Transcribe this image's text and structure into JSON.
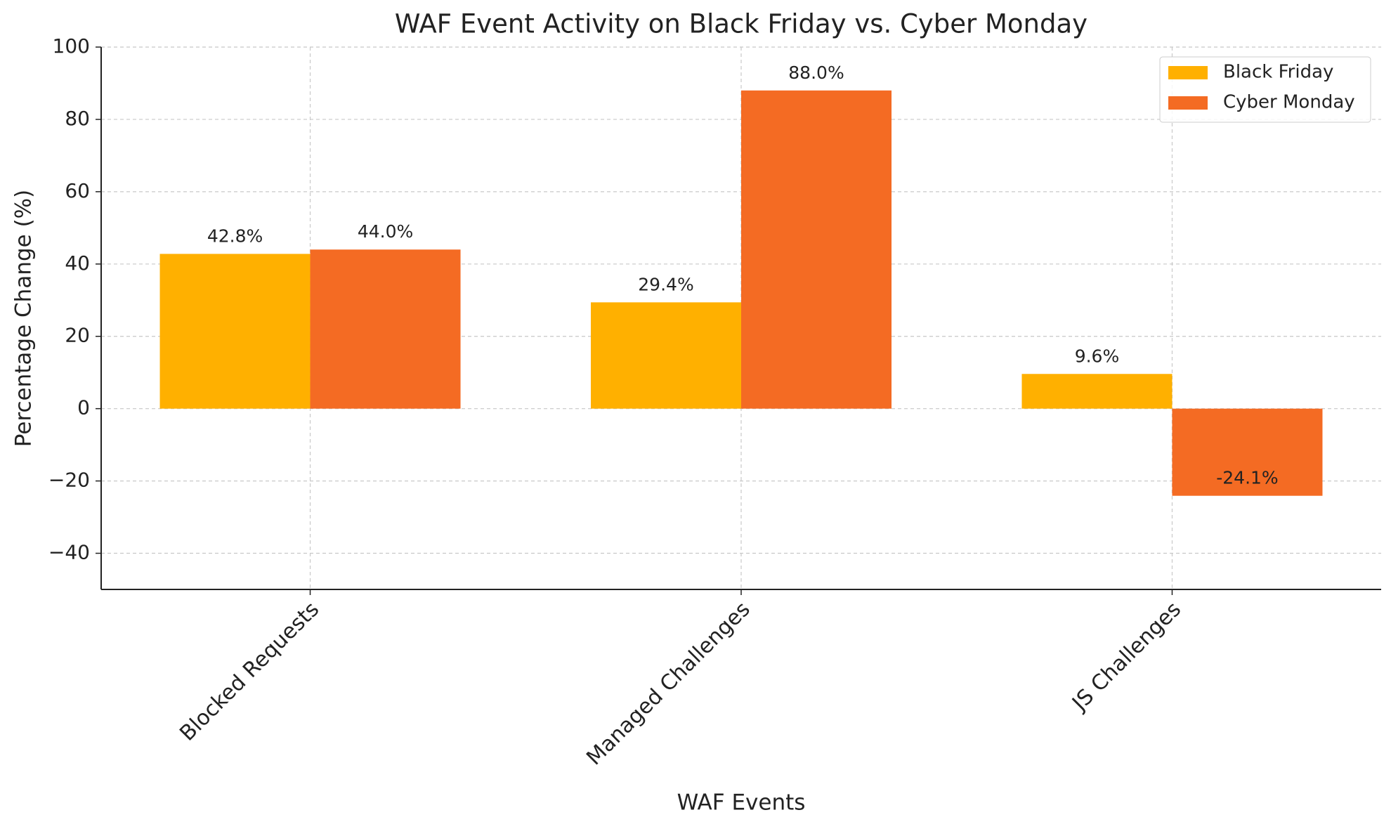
{
  "chart_data": {
    "type": "bar",
    "title": "WAF Event Activity on Black Friday vs. Cyber Monday",
    "x_label": "WAF Events",
    "y_label": "Percentage Change (%)",
    "categories": [
      "Blocked Requests",
      "Managed Challenges",
      "JS Challenges"
    ],
    "series": [
      {
        "name": "Black Friday",
        "color": "#ffb000",
        "values": [
          42.8,
          29.4,
          9.6
        ],
        "value_labels": [
          "42.8%",
          "29.4%",
          "9.6%"
        ]
      },
      {
        "name": "Cyber Monday",
        "color": "#f46b23",
        "values": [
          44.0,
          88.0,
          -24.1
        ],
        "value_labels": [
          "44.0%",
          "88.0%",
          "-24.1%"
        ]
      }
    ],
    "ylim": [
      -50,
      100
    ],
    "yticks": [
      {
        "value": -40,
        "label": "−40"
      },
      {
        "value": -20,
        "label": "−20"
      },
      0,
      20,
      40,
      60,
      80,
      100
    ],
    "grid": true,
    "legend": "upper right"
  }
}
